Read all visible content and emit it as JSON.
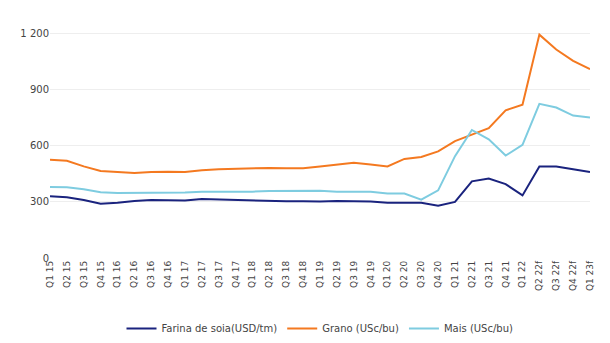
{
  "chart_data": {
    "type": "line",
    "categories": [
      "Q1 15",
      "Q2 15",
      "Q3 15",
      "Q4 15",
      "Q1 16",
      "Q2 16",
      "Q3 16",
      "Q4 16",
      "Q1 17",
      "Q2 17",
      "Q3 17",
      "Q4 17",
      "Q1 18",
      "Q2 18",
      "Q3 18",
      "Q4 18",
      "Q1 19",
      "Q2 19",
      "Q3 19",
      "Q4 19",
      "Q1 20",
      "Q2 20",
      "Q3 20",
      "Q4 20",
      "Q1 21",
      "Q2 21",
      "Q3 21",
      "Q4 21",
      "Q1 22",
      "Q2 22f",
      "Q3 22f",
      "Q4 22f",
      "Q1 23f"
    ],
    "series": [
      {
        "name": "Farina de soia(USD/tm)",
        "color": "#1a237e",
        "values": [
          330,
          325,
          310,
          290,
          295,
          305,
          310,
          308,
          308,
          315,
          312,
          310,
          308,
          305,
          303,
          303,
          302,
          305,
          305,
          302,
          295,
          295,
          295,
          280,
          300,
          410,
          425,
          395,
          335,
          490,
          490,
          475,
          460
        ]
      },
      {
        "name": "Grano (USc/bu)",
        "color": "#f47920",
        "values": [
          525,
          520,
          490,
          465,
          460,
          455,
          460,
          462,
          460,
          470,
          475,
          478,
          480,
          482,
          480,
          480,
          490,
          500,
          510,
          500,
          490,
          530,
          540,
          570,
          625,
          660,
          695,
          790,
          820,
          1195,
          1115,
          1055,
          1010
        ]
      },
      {
        "name": "Mais (USc/bu)",
        "color": "#7ecce0",
        "values": [
          380,
          378,
          368,
          352,
          348,
          348,
          350,
          350,
          350,
          355,
          355,
          352,
          355,
          358,
          358,
          358,
          360,
          355,
          355,
          355,
          345,
          345,
          312,
          362,
          545,
          685,
          635,
          548,
          605,
          825,
          805,
          762,
          752
        ]
      }
    ],
    "ylim": [
      0,
      1300
    ],
    "yticks": [
      0,
      300,
      600,
      900,
      {
        "value": 1200,
        "label": "1 200"
      }
    ],
    "grid": true,
    "legend": "bottom"
  }
}
